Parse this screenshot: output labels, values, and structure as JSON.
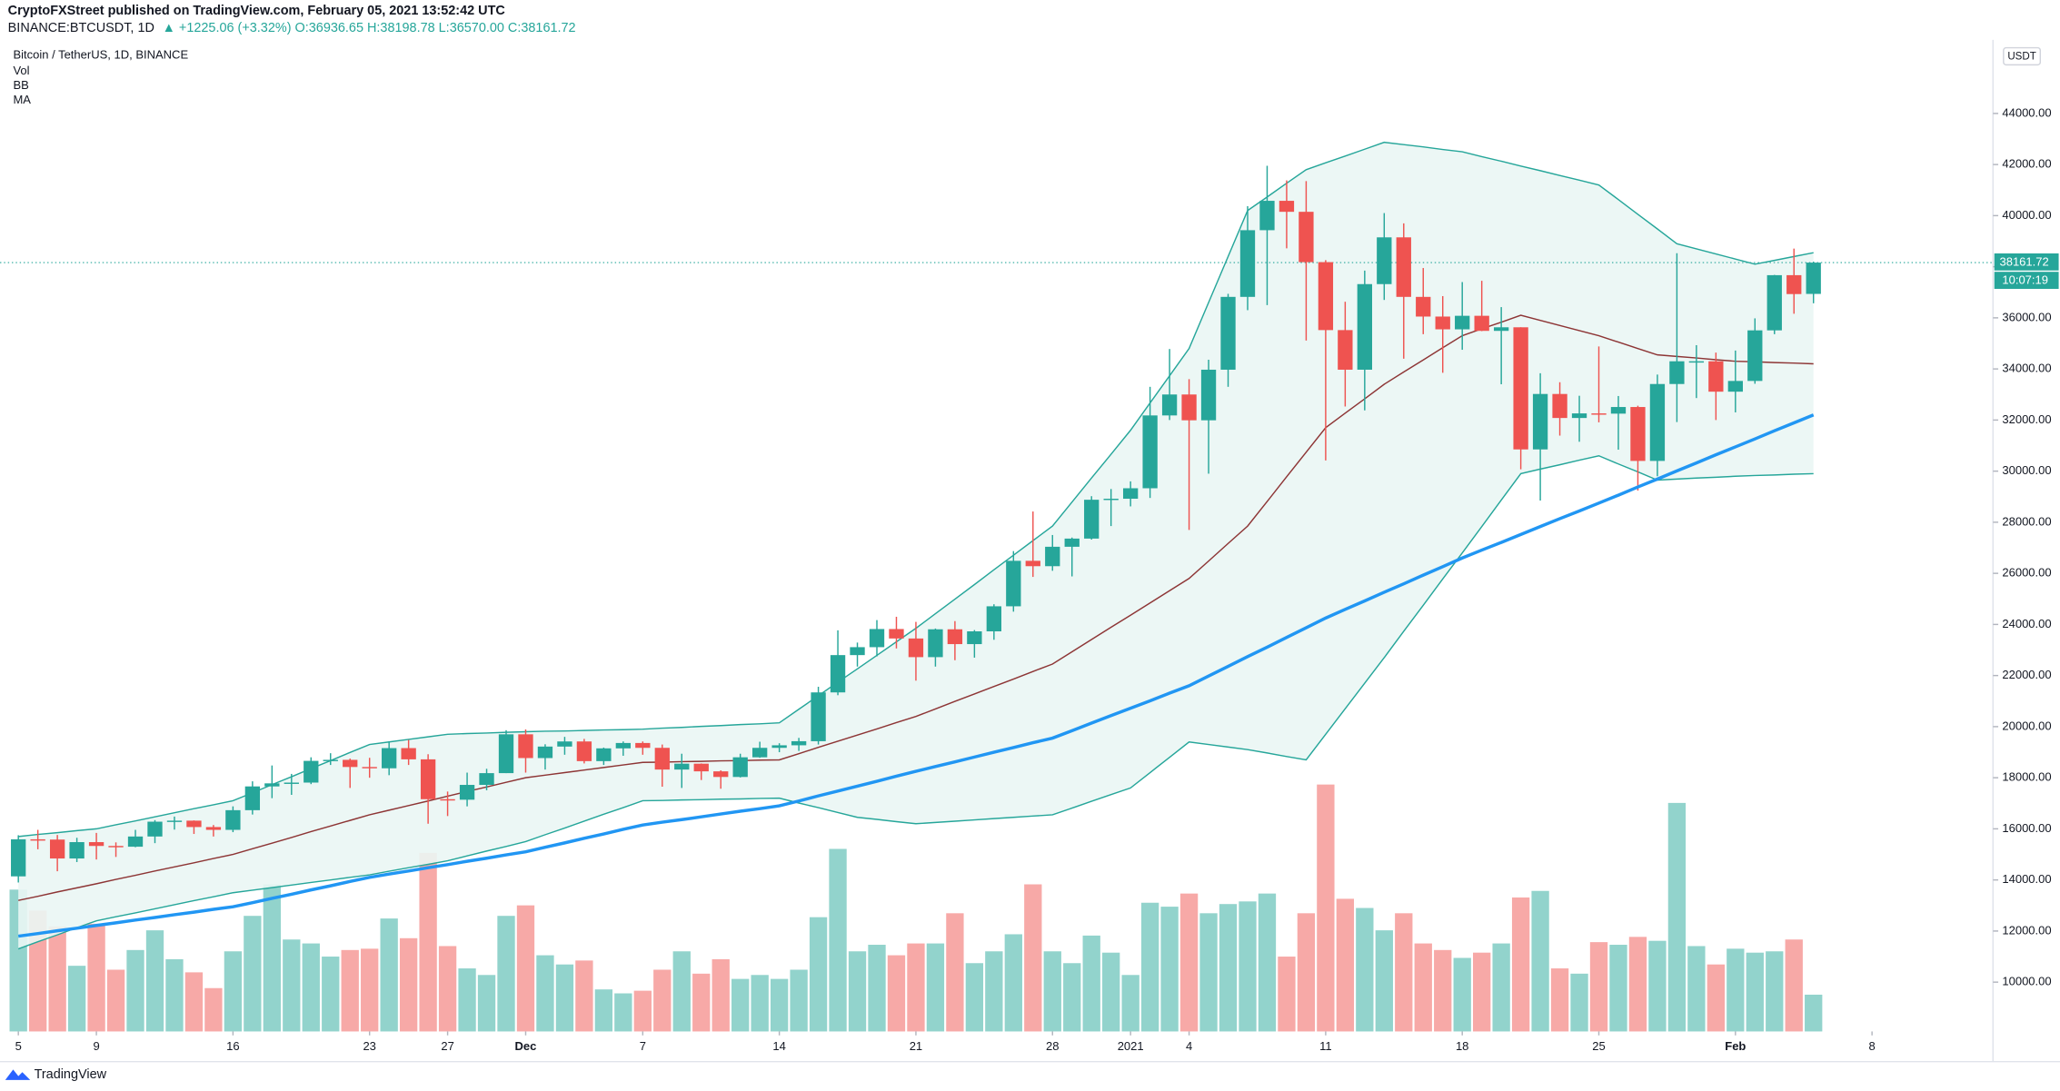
{
  "header": {
    "publisher": "CryptoFXStreet published on TradingView.com, February 05, 2021 13:52:42 UTC",
    "symbol": "BINANCE:BTCUSDT, 1D",
    "change": "▲ +1225.06 (+3.32%) O:36936.65 H:38198.78 L:36570.00 C:38161.72"
  },
  "footer": "TradingView",
  "chart_data": {
    "type": "candlestick",
    "title": "Bitcoin / TetherUS, 1D, BINANCE",
    "indicators": [
      "Vol",
      "BB",
      "MA"
    ],
    "currency": "USDT",
    "last_price": 38161.72,
    "countdown": "10:07:19",
    "up_color": "#26a69a",
    "down_color": "#ef5350",
    "vol_up_color": "#92d3cc",
    "vol_down_color": "#f7a9a7",
    "grid": false,
    "xlim": [
      -0.94,
      101.2
    ],
    "ylim": [
      8070,
      46880
    ],
    "vol_ylim": [
      0,
      200
    ],
    "xticks": [
      {
        "value": 0,
        "label": "5"
      },
      {
        "value": 4,
        "label": "9"
      },
      {
        "value": 11,
        "label": "16"
      },
      {
        "value": 18,
        "label": "23"
      },
      {
        "value": 22,
        "label": "27"
      },
      {
        "value": 26,
        "label": "Dec"
      },
      {
        "value": 32,
        "label": "7"
      },
      {
        "value": 39,
        "label": "14"
      },
      {
        "value": 46,
        "label": "21"
      },
      {
        "value": 53,
        "label": "28"
      },
      {
        "value": 57,
        "label": "2021"
      },
      {
        "value": 60,
        "label": "4"
      },
      {
        "value": 67,
        "label": "11"
      },
      {
        "value": 74,
        "label": "18"
      },
      {
        "value": 81,
        "label": "25"
      },
      {
        "value": 88,
        "label": "Feb"
      },
      {
        "value": 95,
        "label": "8"
      }
    ],
    "yticks": [
      {
        "value": 10000,
        "label": "10000.00"
      },
      {
        "value": 12000,
        "label": "12000.00"
      },
      {
        "value": 14000,
        "label": "14000.00"
      },
      {
        "value": 16000,
        "label": "16000.00"
      },
      {
        "value": 18000,
        "label": "18000.00"
      },
      {
        "value": 20000,
        "label": "20000.00"
      },
      {
        "value": 22000,
        "label": "22000.00"
      },
      {
        "value": 24000,
        "label": "24000.00"
      },
      {
        "value": 26000,
        "label": "26000.00"
      },
      {
        "value": 28000,
        "label": "28000.00"
      },
      {
        "value": 30000,
        "label": "30000.00"
      },
      {
        "value": 32000,
        "label": "32000.00"
      },
      {
        "value": 34000,
        "label": "34000.00"
      },
      {
        "value": 36000,
        "label": "36000.00"
      },
      {
        "value": 38000,
        "label": "38000.00"
      },
      {
        "value": 40000,
        "label": "40000.00"
      },
      {
        "value": 42000,
        "label": "42000.00"
      },
      {
        "value": 44000,
        "label": "44000.00"
      }
    ],
    "ohlc": [
      [
        14140,
        15750,
        13900,
        15590
      ],
      [
        15590,
        15960,
        15200,
        15580
      ],
      [
        15580,
        15760,
        14340,
        14840
      ],
      [
        14840,
        15650,
        14700,
        15480
      ],
      [
        15480,
        15840,
        14800,
        15330
      ],
      [
        15330,
        15470,
        14900,
        15300
      ],
      [
        15300,
        15960,
        15280,
        15700
      ],
      [
        15700,
        16340,
        15440,
        16280
      ],
      [
        16280,
        16480,
        15970,
        16320
      ],
      [
        16320,
        16330,
        15800,
        16070
      ],
      [
        16070,
        16150,
        15700,
        15960
      ],
      [
        15960,
        16880,
        15870,
        16730
      ],
      [
        16730,
        17860,
        16560,
        17660
      ],
      [
        17660,
        18480,
        17200,
        17780
      ],
      [
        17780,
        18150,
        17330,
        17810
      ],
      [
        17810,
        18800,
        17750,
        18660
      ],
      [
        18660,
        18960,
        18500,
        18700
      ],
      [
        18700,
        18750,
        17600,
        18420
      ],
      [
        18420,
        18780,
        18000,
        18370
      ],
      [
        18370,
        19420,
        18100,
        19160
      ],
      [
        19160,
        19480,
        18500,
        18720
      ],
      [
        18720,
        18920,
        16200,
        17160
      ],
      [
        17160,
        17460,
        16500,
        17140
      ],
      [
        17140,
        18200,
        16880,
        17720
      ],
      [
        17720,
        18350,
        17510,
        18180
      ],
      [
        18180,
        19860,
        18180,
        19700
      ],
      [
        19700,
        19890,
        18200,
        18770
      ],
      [
        18770,
        19310,
        18320,
        19220
      ],
      [
        19220,
        19600,
        18900,
        19420
      ],
      [
        19420,
        19520,
        18560,
        18650
      ],
      [
        18650,
        19180,
        18500,
        19150
      ],
      [
        19150,
        19420,
        18860,
        19360
      ],
      [
        19360,
        19420,
        18900,
        19170
      ],
      [
        19170,
        19300,
        17650,
        18320
      ],
      [
        18320,
        18940,
        17600,
        18550
      ],
      [
        18550,
        18560,
        17910,
        18250
      ],
      [
        18250,
        18290,
        17570,
        18030
      ],
      [
        18030,
        18940,
        18010,
        18800
      ],
      [
        18800,
        19410,
        18780,
        19170
      ],
      [
        19170,
        19350,
        19000,
        19270
      ],
      [
        19270,
        19560,
        19050,
        19430
      ],
      [
        19430,
        21560,
        19300,
        21340
      ],
      [
        21340,
        23770,
        21230,
        22800
      ],
      [
        22800,
        23290,
        22350,
        23110
      ],
      [
        23110,
        24170,
        22750,
        23820
      ],
      [
        23820,
        24300,
        23060,
        23450
      ],
      [
        23450,
        24100,
        21800,
        22720
      ],
      [
        22720,
        23840,
        22350,
        23810
      ],
      [
        23810,
        24130,
        22600,
        23230
      ],
      [
        23230,
        23780,
        22700,
        23730
      ],
      [
        23730,
        24790,
        23400,
        24710
      ],
      [
        24710,
        26870,
        24500,
        26490
      ],
      [
        26490,
        28420,
        25860,
        26280
      ],
      [
        26280,
        27500,
        26100,
        27040
      ],
      [
        27040,
        27400,
        25880,
        27360
      ],
      [
        27360,
        29020,
        27320,
        28880
      ],
      [
        28880,
        29300,
        27850,
        28920
      ],
      [
        28920,
        29600,
        28620,
        29330
      ],
      [
        29330,
        33300,
        28950,
        32180
      ],
      [
        32180,
        34780,
        32000,
        33000
      ],
      [
        33000,
        33600,
        27700,
        31990
      ],
      [
        31990,
        34360,
        29900,
        33970
      ],
      [
        33970,
        36940,
        33300,
        36820
      ],
      [
        36820,
        40370,
        36300,
        39430
      ],
      [
        39430,
        41950,
        36500,
        40580
      ],
      [
        40580,
        41380,
        38720,
        40150
      ],
      [
        40150,
        41350,
        35110,
        38180
      ],
      [
        38180,
        38260,
        30420,
        35520
      ],
      [
        35520,
        36630,
        32530,
        33970
      ],
      [
        33970,
        37850,
        32380,
        37320
      ],
      [
        37320,
        40100,
        36700,
        39150
      ],
      [
        39150,
        39700,
        34400,
        36820
      ],
      [
        36820,
        37950,
        35360,
        36050
      ],
      [
        36050,
        36850,
        33850,
        35550
      ],
      [
        35550,
        37400,
        34750,
        36080
      ],
      [
        36080,
        37450,
        35480,
        35490
      ],
      [
        35490,
        36420,
        33400,
        35630
      ],
      [
        35630,
        35630,
        30070,
        30850
      ],
      [
        30850,
        33830,
        28850,
        33020
      ],
      [
        33020,
        33480,
        31390,
        32080
      ],
      [
        32080,
        32950,
        31150,
        32260
      ],
      [
        32260,
        34880,
        31910,
        32250
      ],
      [
        32250,
        32940,
        30840,
        32510
      ],
      [
        32510,
        32560,
        29240,
        30400
      ],
      [
        30400,
        33780,
        29800,
        33410
      ],
      [
        33410,
        38530,
        31920,
        34300
      ],
      [
        34300,
        34930,
        32860,
        34300
      ],
      [
        34300,
        34640,
        32000,
        33110
      ],
      [
        33110,
        34720,
        32300,
        33530
      ],
      [
        33530,
        35980,
        33420,
        35510
      ],
      [
        35510,
        37680,
        35360,
        37670
      ],
      [
        37670,
        38710,
        36160,
        36930
      ],
      [
        36936.65,
        38198.78,
        36570,
        38161.72
      ]
    ],
    "volume": [
      108,
      92,
      80,
      50,
      82,
      47,
      62,
      77,
      55,
      45,
      33,
      61,
      88,
      112,
      70,
      67,
      57,
      62,
      63,
      86,
      71,
      136,
      65,
      48,
      43,
      88,
      96,
      58,
      51,
      54,
      32,
      29,
      31,
      47,
      61,
      44,
      55,
      40,
      43,
      40,
      47,
      87,
      139,
      61,
      66,
      58,
      67,
      67,
      90,
      52,
      61,
      74,
      112,
      61,
      52,
      73,
      60,
      43,
      98,
      95,
      105,
      90,
      97,
      99,
      105,
      57,
      90,
      188,
      101,
      94,
      77,
      90,
      67,
      62,
      56,
      60,
      67,
      102,
      107,
      48,
      44,
      68,
      66,
      72,
      69,
      174,
      65,
      51,
      63,
      60,
      61,
      70,
      28
    ],
    "bollinger": {
      "color": "#26a69a",
      "fill": "#eaf6f4",
      "basis_color": "#8d3535",
      "upper": [
        15700,
        15780,
        15850,
        15930,
        16000,
        16160,
        16310,
        16470,
        16630,
        16790,
        16940,
        17100,
        17410,
        17730,
        18040,
        18360,
        18670,
        18990,
        19300,
        19400,
        19500,
        19600,
        19700,
        19730,
        19750,
        19780,
        19800,
        19820,
        19830,
        19850,
        19870,
        19880,
        19900,
        19940,
        19970,
        20010,
        20040,
        20080,
        20110,
        20150,
        20680,
        21210,
        21740,
        22260,
        22790,
        23320,
        23850,
        24420,
        24990,
        25560,
        26140,
        26710,
        27280,
        27850,
        28790,
        29730,
        30660,
        31600,
        32670,
        33730,
        34800,
        36600,
        38400,
        40200,
        40730,
        41270,
        41800,
        42070,
        42330,
        42600,
        42870,
        42780,
        42690,
        42590,
        42500,
        42310,
        42130,
        41940,
        41760,
        41570,
        41390,
        41200,
        40630,
        40050,
        39480,
        38900,
        38700,
        38500,
        38300,
        38100,
        38250,
        38400,
        38550
      ],
      "basis": [
        13200,
        13360,
        13530,
        13690,
        13850,
        14020,
        14180,
        14350,
        14510,
        14670,
        14840,
        15000,
        15220,
        15440,
        15660,
        15890,
        16110,
        16330,
        16550,
        16730,
        16910,
        17090,
        17280,
        17460,
        17640,
        17820,
        18000,
        18100,
        18200,
        18300,
        18400,
        18500,
        18600,
        18610,
        18630,
        18640,
        18660,
        18670,
        18690,
        18700,
        18940,
        19190,
        19430,
        19670,
        19910,
        20160,
        20400,
        20690,
        20990,
        21280,
        21570,
        21860,
        22160,
        22450,
        22930,
        23410,
        23890,
        24360,
        24840,
        25320,
        25800,
        26480,
        27170,
        27850,
        28810,
        29780,
        30740,
        31700,
        32270,
        32830,
        33400,
        33880,
        34350,
        34830,
        35300,
        35570,
        35830,
        36100,
        35900,
        35700,
        35500,
        35300,
        35050,
        34800,
        34550,
        34490,
        34430,
        34360,
        34300,
        34280,
        34250,
        34230,
        34200
      ],
      "lower": [
        11300,
        11580,
        11850,
        12130,
        12400,
        12560,
        12710,
        12870,
        13030,
        13190,
        13340,
        13500,
        13600,
        13700,
        13800,
        13900,
        14000,
        14100,
        14200,
        14340,
        14480,
        14610,
        14750,
        14940,
        15130,
        15310,
        15500,
        15770,
        16030,
        16300,
        16570,
        16830,
        17100,
        17110,
        17130,
        17140,
        17160,
        17170,
        17190,
        17200,
        17010,
        16830,
        16640,
        16450,
        16370,
        16280,
        16200,
        16250,
        16300,
        16350,
        16400,
        16450,
        16500,
        16550,
        16810,
        17080,
        17340,
        17600,
        18200,
        18800,
        19400,
        19300,
        19200,
        19100,
        18970,
        18830,
        18700,
        19700,
        20700,
        21700,
        22700,
        23730,
        24750,
        25780,
        26800,
        27830,
        28870,
        29900,
        30080,
        30250,
        30430,
        30600,
        30280,
        29970,
        29650,
        29690,
        29730,
        29760,
        29800,
        29830,
        29850,
        29880,
        29900
      ]
    },
    "ma": {
      "color": "#2196f3",
      "values": [
        11800,
        11900,
        12010,
        12110,
        12220,
        12320,
        12430,
        12530,
        12640,
        12740,
        12850,
        12950,
        13110,
        13280,
        13440,
        13610,
        13770,
        13940,
        14100,
        14230,
        14350,
        14480,
        14600,
        14730,
        14850,
        14980,
        15100,
        15280,
        15450,
        15630,
        15800,
        15980,
        16150,
        16260,
        16360,
        16470,
        16580,
        16690,
        16790,
        16900,
        17090,
        17290,
        17480,
        17670,
        17860,
        18060,
        18250,
        18440,
        18620,
        18810,
        19000,
        19180,
        19370,
        19550,
        19840,
        20140,
        20430,
        20720,
        21010,
        21310,
        21600,
        21980,
        22360,
        22740,
        23110,
        23490,
        23870,
        24250,
        24590,
        24920,
        25260,
        25590,
        25930,
        26260,
        26600,
        26910,
        27210,
        27520,
        27830,
        28140,
        28440,
        28750,
        29060,
        29380,
        29690,
        30010,
        30320,
        30640,
        30950,
        31260,
        31580,
        31890,
        32200
      ]
    }
  }
}
